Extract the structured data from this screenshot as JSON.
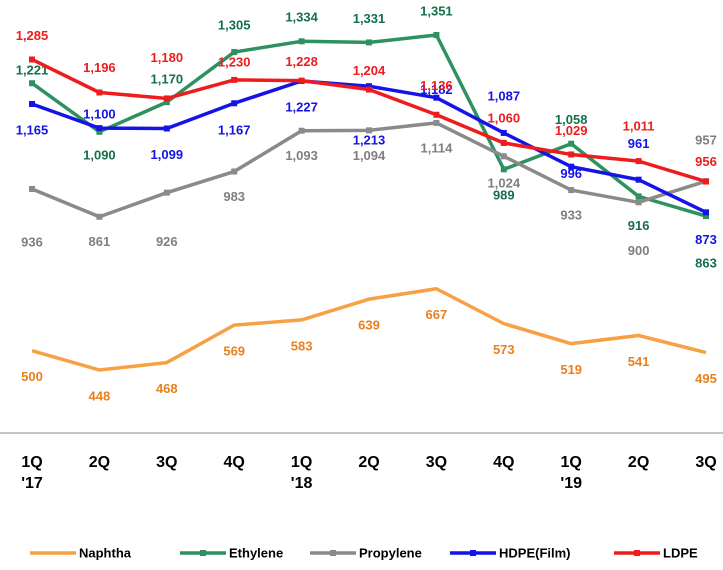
{
  "chart_data": {
    "type": "line",
    "categories": [
      "1Q\n'17",
      "2Q",
      "3Q",
      "4Q",
      "1Q\n'18",
      "2Q",
      "3Q",
      "4Q",
      "1Q\n'19",
      "2Q",
      "3Q"
    ],
    "series": [
      {
        "name": "Naphtha",
        "color": "#f7a044",
        "label_color": "#e8801e",
        "values": [
          500,
          448,
          468,
          569,
          583,
          639,
          667,
          573,
          519,
          541,
          495
        ]
      },
      {
        "name": "Ethylene",
        "color": "#2e9160",
        "label_color": "#14704a",
        "values": [
          1221,
          1090,
          1170,
          1305,
          1334,
          1331,
          1351,
          989,
          1058,
          916,
          863
        ],
        "value_labels": [
          "1,221",
          "1,090",
          "1,170",
          "1,305",
          "1,334",
          "1,331",
          "1,351",
          "989",
          "1,058",
          "916",
          "863"
        ]
      },
      {
        "name": "Propylene",
        "color": "#8a8a8a",
        "label_color": "#7f7f7f",
        "values": [
          936,
          861,
          926,
          983,
          1093,
          1094,
          1114,
          1024,
          933,
          900,
          957
        ],
        "value_labels": [
          "936",
          "861",
          "926",
          "983",
          "1,093",
          "1,094",
          "1,114",
          "1,024",
          "933",
          "900",
          "957"
        ]
      },
      {
        "name": "HDPE(Film)",
        "color": "#1414e6",
        "label_color": "#1414e6",
        "values": [
          1165,
          1100,
          1099,
          1167,
          1227,
          1213,
          1182,
          1087,
          996,
          961,
          873
        ],
        "value_labels": [
          "1,165",
          "1,100",
          "1,099",
          "1,167",
          "1,227",
          "1,213",
          "1,182",
          "1,087",
          "996",
          "961",
          "873"
        ]
      },
      {
        "name": "LDPE",
        "color": "#ee1c1c",
        "label_color": "#ee1c1c",
        "values": [
          1285,
          1196,
          1180,
          1230,
          1228,
          1204,
          1136,
          1060,
          1029,
          1011,
          956
        ],
        "value_labels": [
          "1,285",
          "1,196",
          "1,180",
          "1,230",
          "1,228",
          "1,204",
          "1,136",
          "1,060",
          "1,029",
          "1,011",
          "956"
        ]
      }
    ]
  }
}
